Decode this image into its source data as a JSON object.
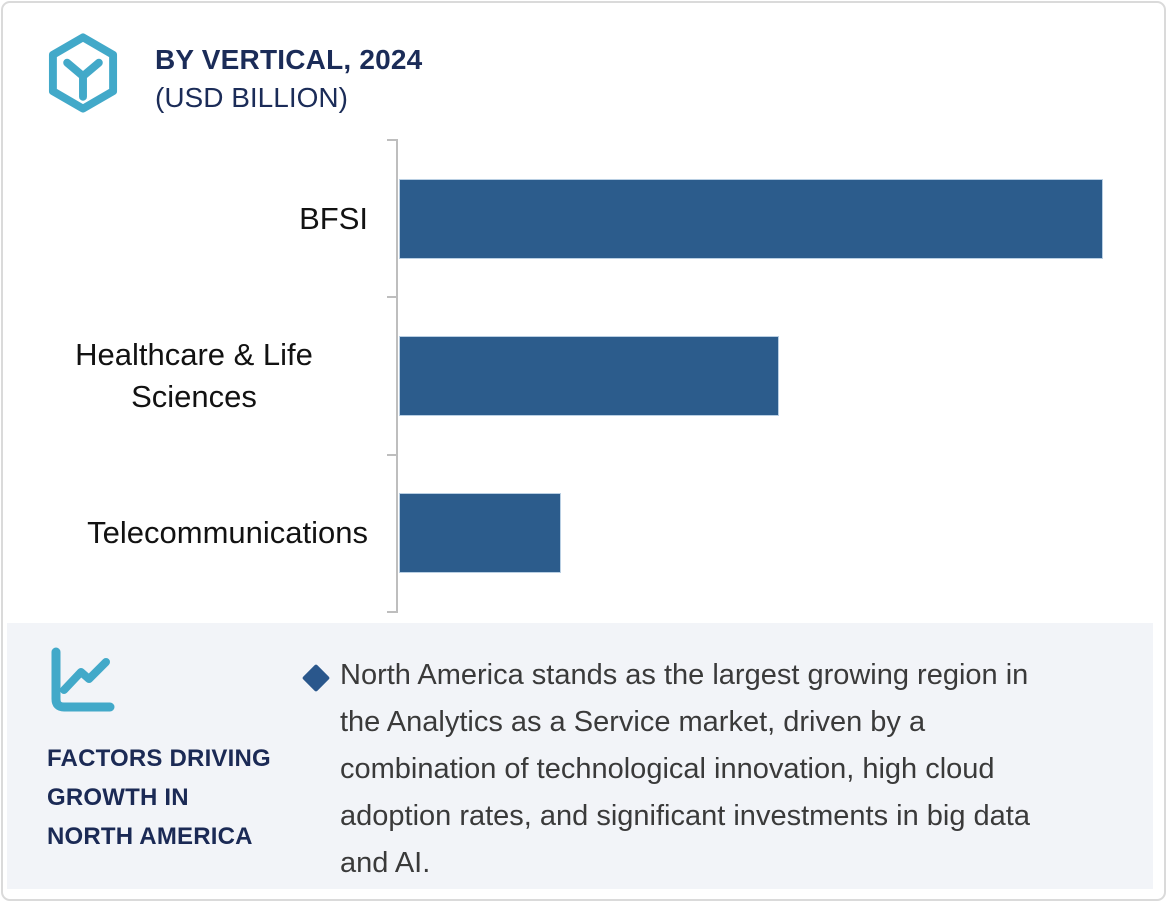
{
  "header": {
    "title": "BY VERTICAL, 2024",
    "subtitle": "(USD BILLION)",
    "logo_icon": "hexagon-cube-logo-icon"
  },
  "chart_data": {
    "type": "bar",
    "orientation": "horizontal",
    "title": "BY VERTICAL, 2024",
    "subtitle": "(USD BILLION)",
    "categories": [
      "BFSI",
      "Healthcare & Life Sciences",
      "Telecommunications"
    ],
    "values": [
      100,
      54,
      23
    ],
    "values_note": "No numeric axis, gridlines or data labels are shown; values are relative bar lengths as a percent of the longest bar (BFSI).",
    "value_labels_shown": false,
    "gridlines": false,
    "legend": "none",
    "bar_color": "#2c5c8c",
    "axis_line_color": "#bebebe"
  },
  "factors": {
    "icon": "line-chart-icon",
    "bullet_icon": "diamond-bullet-icon",
    "heading_lines": [
      "FACTORS DRIVING",
      "GROWTH IN",
      "NORTH AMERICA"
    ],
    "bullet_text": "North America stands as the largest growing region in the Analytics as a Service market, driven by a combination of technological innovation, high cloud adoption rates, and significant investments in big data and AI."
  },
  "colors": {
    "accent_teal": "#42a9c9",
    "navy_text": "#1b2c58",
    "bar_blue": "#2c5c8c",
    "panel_background": "#f2f4f8",
    "axis_gray": "#bebebe",
    "body_text": "#3a3a3a",
    "frame_border": "#dadada"
  }
}
